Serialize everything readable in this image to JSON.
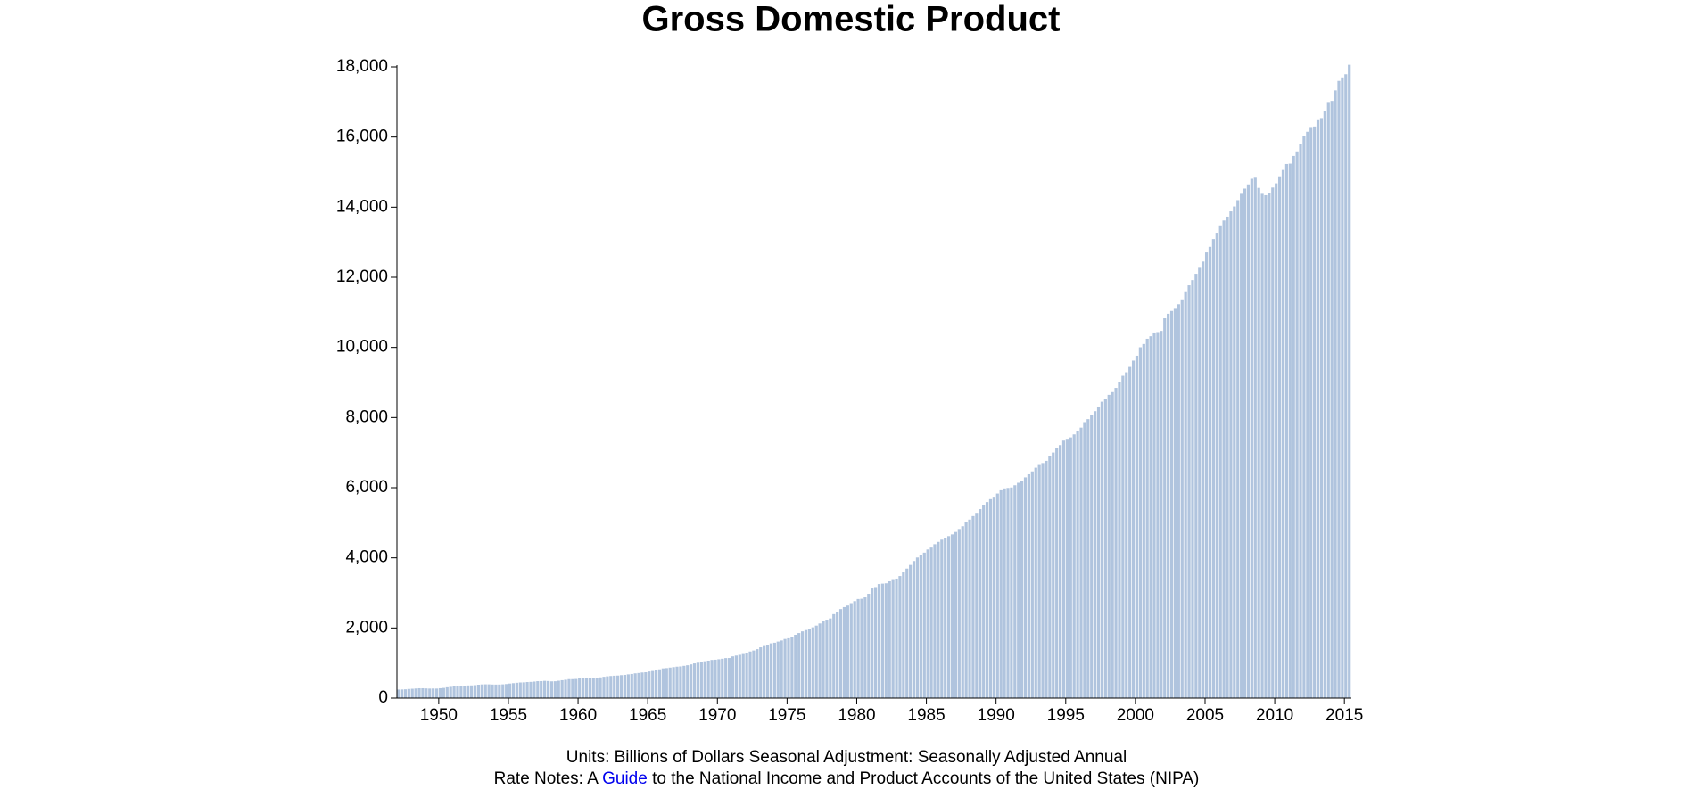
{
  "chart_data": {
    "type": "bar",
    "title": "Gross Domestic Product",
    "color": "#b0c4de",
    "xlim": [
      1947,
      2015.5
    ],
    "xticks": [
      1950,
      1955,
      1960,
      1965,
      1970,
      1975,
      1980,
      1985,
      1990,
      1995,
      2000,
      2005,
      2010,
      2015
    ],
    "ylim": [
      0,
      18000
    ],
    "yticks": [
      0,
      {
        "value": 2000,
        "label": "2,000"
      },
      {
        "value": 4000,
        "label": "4,000"
      },
      {
        "value": 6000,
        "label": "6,000"
      },
      {
        "value": 8000,
        "label": "8,000"
      },
      {
        "value": 10000,
        "label": "10,000"
      },
      {
        "value": 12000,
        "label": "12,000"
      },
      {
        "value": 14000,
        "label": "14,000"
      },
      {
        "value": 16000,
        "label": "16,000"
      },
      {
        "value": 18000,
        "label": "18,000"
      }
    ],
    "x": [
      1947,
      1947.25,
      1947.5,
      1947.75,
      1948,
      1948.25,
      1948.5,
      1948.75,
      1949,
      1949.25,
      1949.5,
      1949.75,
      1950,
      1950.25,
      1950.5,
      1950.75,
      1951,
      1951.25,
      1951.5,
      1951.75,
      1952,
      1952.25,
      1952.5,
      1952.75,
      1953,
      1953.25,
      1953.5,
      1953.75,
      1954,
      1954.25,
      1954.5,
      1954.75,
      1955,
      1955.25,
      1955.5,
      1955.75,
      1956,
      1956.25,
      1956.5,
      1956.75,
      1957,
      1957.25,
      1957.5,
      1957.75,
      1958,
      1958.25,
      1958.5,
      1958.75,
      1959,
      1959.25,
      1959.5,
      1959.75,
      1960,
      1960.25,
      1960.5,
      1960.75,
      1961,
      1961.25,
      1961.5,
      1961.75,
      1962,
      1962.25,
      1962.5,
      1962.75,
      1963,
      1963.25,
      1963.5,
      1963.75,
      1964,
      1964.25,
      1964.5,
      1964.75,
      1965,
      1965.25,
      1965.5,
      1965.75,
      1966,
      1966.25,
      1966.5,
      1966.75,
      1967,
      1967.25,
      1967.5,
      1967.75,
      1968,
      1968.25,
      1968.5,
      1968.75,
      1969,
      1969.25,
      1969.5,
      1969.75,
      1970,
      1970.25,
      1970.5,
      1970.75,
      1971,
      1971.25,
      1971.5,
      1971.75,
      1972,
      1972.25,
      1972.5,
      1972.75,
      1973,
      1973.25,
      1973.5,
      1973.75,
      1974,
      1974.25,
      1974.5,
      1974.75,
      1975,
      1975.25,
      1975.5,
      1975.75,
      1976,
      1976.25,
      1976.5,
      1976.75,
      1977,
      1977.25,
      1977.5,
      1977.75,
      1978,
      1978.25,
      1978.5,
      1978.75,
      1979,
      1979.25,
      1979.5,
      1979.75,
      1980,
      1980.25,
      1980.5,
      1980.75,
      1981,
      1981.25,
      1981.5,
      1981.75,
      1982,
      1982.25,
      1982.5,
      1982.75,
      1983,
      1983.25,
      1983.5,
      1983.75,
      1984,
      1984.25,
      1984.5,
      1984.75,
      1985,
      1985.25,
      1985.5,
      1985.75,
      1986,
      1986.25,
      1986.5,
      1986.75,
      1987,
      1987.25,
      1987.5,
      1987.75,
      1988,
      1988.25,
      1988.5,
      1988.75,
      1989,
      1989.25,
      1989.5,
      1989.75,
      1990,
      1990.25,
      1990.5,
      1990.75,
      1991,
      1991.25,
      1991.5,
      1991.75,
      1992,
      1992.25,
      1992.5,
      1992.75,
      1993,
      1993.25,
      1993.5,
      1993.75,
      1994,
      1994.25,
      1994.5,
      1994.75,
      1995,
      1995.25,
      1995.5,
      1995.75,
      1996,
      1996.25,
      1996.5,
      1996.75,
      1997,
      1997.25,
      1997.5,
      1997.75,
      1998,
      1998.25,
      1998.5,
      1998.75,
      1999,
      1999.25,
      1999.5,
      1999.75,
      2000,
      2000.25,
      2000.5,
      2000.75,
      2001,
      2001.25,
      2001.5,
      2001.75,
      2002,
      2002.25,
      2002.5,
      2002.75,
      2003,
      2003.25,
      2003.5,
      2003.75,
      2004,
      2004.25,
      2004.5,
      2004.75,
      2005,
      2005.25,
      2005.5,
      2005.75,
      2006,
      2006.25,
      2006.5,
      2006.75,
      2007,
      2007.25,
      2007.5,
      2007.75,
      2008,
      2008.25,
      2008.5,
      2008.75,
      2009,
      2009.25,
      2009.5,
      2009.75,
      2010,
      2010.25,
      2010.5,
      2010.75,
      2011,
      2011.25,
      2011.5,
      2011.75,
      2012,
      2012.25,
      2012.5,
      2012.75,
      2013,
      2013.25,
      2013.5,
      2013.75,
      2014,
      2014.25,
      2014.5,
      2014.75,
      2015,
      2015.25
    ],
    "values": [
      243,
      246,
      250,
      260,
      266,
      273,
      280,
      280,
      275,
      271,
      273,
      271,
      281,
      290,
      308,
      320,
      336,
      344,
      351,
      356,
      360,
      361,
      368,
      381,
      389,
      392,
      391,
      386,
      385,
      386,
      391,
      400,
      414,
      425,
      436,
      445,
      448,
      457,
      462,
      471,
      482,
      484,
      492,
      487,
      477,
      480,
      495,
      510,
      523,
      540,
      540,
      545,
      564,
      563,
      565,
      560,
      565,
      577,
      590,
      607,
      620,
      630,
      638,
      642,
      654,
      662,
      677,
      688,
      706,
      716,
      730,
      737,
      759,
      773,
      794,
      820,
      847,
      855,
      870,
      883,
      896,
      903,
      920,
      937,
      962,
      990,
      1009,
      1028,
      1051,
      1068,
      1089,
      1095,
      1108,
      1123,
      1141,
      1143,
      1190,
      1213,
      1234,
      1256,
      1290,
      1328,
      1357,
      1396,
      1448,
      1485,
      1515,
      1561,
      1579,
      1612,
      1643,
      1686,
      1706,
      1746,
      1805,
      1854,
      1903,
      1940,
      1978,
      2018,
      2067,
      2128,
      2203,
      2236,
      2271,
      2394,
      2455,
      2538,
      2595,
      2639,
      2707,
      2764,
      2825,
      2832,
      2872,
      2974,
      3126,
      3166,
      3252,
      3264,
      3274,
      3331,
      3367,
      3408,
      3481,
      3584,
      3693,
      3797,
      3909,
      4010,
      4089,
      4148,
      4238,
      4293,
      4389,
      4455,
      4518,
      4559,
      4619,
      4669,
      4737,
      4822,
      4901,
      5024,
      5090,
      5190,
      5283,
      5389,
      5496,
      5590,
      5674,
      5717,
      5833,
      5926,
      5979,
      5993,
      6006,
      6070,
      6140,
      6188,
      6294,
      6382,
      6464,
      6570,
      6646,
      6703,
      6765,
      6907,
      7002,
      7119,
      7214,
      7342,
      7393,
      7433,
      7519,
      7610,
      7712,
      7869,
      7954,
      8082,
      8181,
      8314,
      8451,
      8535,
      8647,
      8726,
      8846,
      9024,
      9190,
      9291,
      9443,
      9624,
      9764,
      10004,
      10097,
      10247,
      10318,
      10425,
      10437,
      10471,
      10830,
      10960,
      11040,
      11100,
      11230,
      11370,
      11600,
      11770,
      11920,
      12100,
      12270,
      12450,
      12710,
      12870,
      13090,
      13270,
      13480,
      13620,
      13730,
      13880,
      14020,
      14200,
      14380,
      14530,
      14650,
      14810,
      14840,
      14550,
      14380,
      14340,
      14400,
      14560,
      14680,
      14880,
      15060,
      15230,
      15240,
      15460,
      15590,
      15790,
      16020,
      16150,
      16260,
      16300,
      16480,
      16540,
      16750,
      16999,
      17030,
      17330,
      17600,
      17700,
      17790,
      18060
    ],
    "notes": {
      "line1": "Units: Billions of Dollars Seasonal Adjustment: Seasonally Adjusted Annual",
      "line2_before": "Rate Notes: A ",
      "link": "Guide ",
      "line2_after": "to the National Income and Product Accounts of the United States (NIPA)"
    }
  }
}
